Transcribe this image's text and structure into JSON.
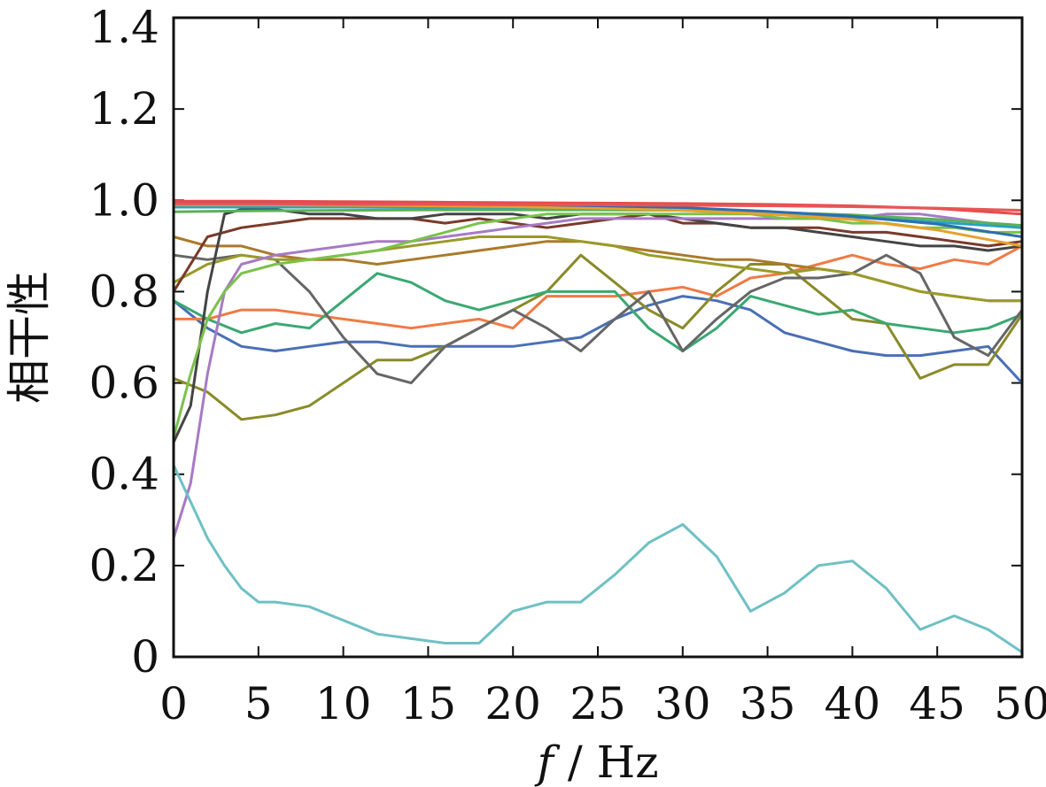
{
  "chart_data": {
    "type": "line",
    "title": "",
    "xlabel_italic": "f",
    "xlabel_rest": " / Hz",
    "ylabel": "相干性",
    "xlim": [
      0,
      50
    ],
    "ylim": [
      0,
      1.4
    ],
    "xticks": [
      0,
      5,
      10,
      15,
      20,
      25,
      30,
      35,
      40,
      45,
      50
    ],
    "xtick_labels": [
      "0",
      "5",
      "10",
      "15",
      "20",
      "25",
      "30",
      "35",
      "40",
      "45",
      "50"
    ],
    "yticks": [
      0,
      0.2,
      0.4,
      0.6,
      0.8,
      1.0,
      1.2,
      1.4
    ],
    "ytick_labels": [
      "0",
      "0.2",
      "0.4",
      "0.6",
      "0.8",
      "1.0",
      "1.2",
      "1.4"
    ],
    "grid": false,
    "legend": "none",
    "series": [
      {
        "color": "#4a6fb5",
        "x": [
          0,
          2,
          4,
          6,
          8,
          10,
          12,
          14,
          16,
          18,
          20,
          22,
          24,
          26,
          28,
          30,
          32,
          34,
          36,
          38,
          40,
          42,
          44,
          46,
          48,
          50
        ],
        "y": [
          0.78,
          0.72,
          0.68,
          0.67,
          0.68,
          0.69,
          0.69,
          0.68,
          0.68,
          0.68,
          0.68,
          0.69,
          0.7,
          0.74,
          0.77,
          0.79,
          0.78,
          0.76,
          0.71,
          0.69,
          0.67,
          0.66,
          0.66,
          0.67,
          0.68,
          0.6
        ]
      },
      {
        "color": "#f07a45",
        "x": [
          0,
          2,
          4,
          6,
          8,
          10,
          12,
          14,
          16,
          18,
          20,
          22,
          24,
          26,
          28,
          30,
          32,
          34,
          36,
          38,
          40,
          42,
          44,
          46,
          48,
          50
        ],
        "y": [
          0.74,
          0.74,
          0.76,
          0.76,
          0.75,
          0.74,
          0.73,
          0.72,
          0.73,
          0.74,
          0.72,
          0.79,
          0.79,
          0.79,
          0.8,
          0.81,
          0.79,
          0.83,
          0.84,
          0.86,
          0.88,
          0.86,
          0.85,
          0.87,
          0.86,
          0.9
        ]
      },
      {
        "color": "#8a8a2a",
        "x": [
          0,
          2,
          4,
          6,
          8,
          10,
          12,
          14,
          16,
          18,
          20,
          22,
          24,
          26,
          28,
          30,
          32,
          34,
          36,
          38,
          40,
          42,
          44,
          46,
          48,
          50
        ],
        "y": [
          0.61,
          0.58,
          0.52,
          0.53,
          0.55,
          0.6,
          0.65,
          0.65,
          0.68,
          0.72,
          0.76,
          0.8,
          0.88,
          0.82,
          0.76,
          0.72,
          0.8,
          0.86,
          0.86,
          0.8,
          0.74,
          0.73,
          0.61,
          0.64,
          0.64,
          0.75
        ]
      },
      {
        "color": "#3aa872",
        "x": [
          0,
          2,
          4,
          6,
          8,
          10,
          12,
          14,
          16,
          18,
          20,
          22,
          24,
          26,
          28,
          30,
          32,
          34,
          36,
          38,
          40,
          42,
          44,
          46,
          48,
          50
        ],
        "y": [
          0.78,
          0.74,
          0.71,
          0.73,
          0.72,
          0.78,
          0.84,
          0.82,
          0.78,
          0.76,
          0.78,
          0.8,
          0.8,
          0.8,
          0.72,
          0.67,
          0.72,
          0.79,
          0.77,
          0.75,
          0.76,
          0.73,
          0.72,
          0.71,
          0.72,
          0.75
        ]
      },
      {
        "color": "#666666",
        "x": [
          0,
          2,
          4,
          6,
          8,
          10,
          12,
          14,
          16,
          18,
          20,
          22,
          24,
          26,
          28,
          30,
          32,
          34,
          36,
          38,
          40,
          42,
          44,
          46,
          48,
          50
        ],
        "y": [
          0.88,
          0.87,
          0.88,
          0.87,
          0.8,
          0.7,
          0.62,
          0.6,
          0.68,
          0.72,
          0.76,
          0.72,
          0.67,
          0.74,
          0.8,
          0.67,
          0.74,
          0.8,
          0.83,
          0.83,
          0.84,
          0.88,
          0.84,
          0.7,
          0.66,
          0.76
        ]
      },
      {
        "color": "#aa7a2a",
        "x": [
          0,
          2,
          4,
          6,
          8,
          10,
          12,
          14,
          16,
          18,
          20,
          22,
          24,
          26,
          28,
          30,
          32,
          34,
          36,
          38,
          40,
          42,
          44,
          46,
          48,
          50
        ],
        "y": [
          0.92,
          0.9,
          0.9,
          0.88,
          0.87,
          0.87,
          0.86,
          0.87,
          0.88,
          0.89,
          0.9,
          0.91,
          0.91,
          0.9,
          0.89,
          0.88,
          0.87,
          0.87,
          0.86,
          0.85,
          0.84,
          0.82,
          0.8,
          0.79,
          0.78,
          0.78
        ]
      },
      {
        "color": "#9a9a2a",
        "x": [
          0,
          2,
          4,
          6,
          8,
          10,
          12,
          14,
          16,
          18,
          20,
          22,
          24,
          26,
          28,
          30,
          32,
          34,
          36,
          38,
          40,
          42,
          44,
          46,
          48,
          50
        ],
        "y": [
          0.82,
          0.86,
          0.88,
          0.87,
          0.87,
          0.88,
          0.89,
          0.9,
          0.91,
          0.92,
          0.92,
          0.92,
          0.91,
          0.9,
          0.88,
          0.87,
          0.86,
          0.85,
          0.84,
          0.85,
          0.84,
          0.82,
          0.8,
          0.79,
          0.78,
          0.78
        ]
      },
      {
        "color": "#7a3a2a",
        "x": [
          0,
          2,
          4,
          6,
          8,
          10,
          12,
          14,
          16,
          18,
          20,
          22,
          24,
          26,
          28,
          30,
          32,
          34,
          36,
          38,
          40,
          42,
          44,
          46,
          48,
          50
        ],
        "y": [
          0.8,
          0.92,
          0.94,
          0.95,
          0.96,
          0.96,
          0.96,
          0.96,
          0.95,
          0.96,
          0.95,
          0.94,
          0.95,
          0.96,
          0.97,
          0.95,
          0.95,
          0.94,
          0.94,
          0.94,
          0.93,
          0.93,
          0.92,
          0.91,
          0.9,
          0.91
        ]
      },
      {
        "color": "#444444",
        "x": [
          0,
          1,
          2,
          3,
          4,
          6,
          8,
          10,
          12,
          14,
          16,
          18,
          20,
          22,
          24,
          26,
          28,
          30,
          32,
          34,
          36,
          38,
          40,
          42,
          44,
          46,
          48,
          50
        ],
        "y": [
          0.47,
          0.55,
          0.8,
          0.97,
          0.98,
          0.98,
          0.97,
          0.97,
          0.96,
          0.96,
          0.97,
          0.97,
          0.97,
          0.96,
          0.97,
          0.97,
          0.97,
          0.96,
          0.95,
          0.94,
          0.94,
          0.93,
          0.92,
          0.91,
          0.9,
          0.9,
          0.89,
          0.9
        ]
      },
      {
        "color": "#a77ac4",
        "x": [
          0,
          1,
          2,
          3,
          4,
          6,
          8,
          10,
          12,
          14,
          16,
          18,
          20,
          22,
          24,
          26,
          28,
          30,
          32,
          34,
          36,
          38,
          40,
          42,
          44,
          46,
          48,
          50
        ],
        "y": [
          0.26,
          0.38,
          0.62,
          0.8,
          0.86,
          0.88,
          0.89,
          0.9,
          0.91,
          0.91,
          0.92,
          0.93,
          0.94,
          0.95,
          0.96,
          0.96,
          0.96,
          0.96,
          0.96,
          0.96,
          0.96,
          0.96,
          0.96,
          0.97,
          0.97,
          0.96,
          0.95,
          0.94
        ]
      },
      {
        "color": "#7ac24a",
        "x": [
          0,
          1,
          2,
          3,
          4,
          6,
          8,
          10,
          12,
          14,
          16,
          18,
          20,
          22,
          24,
          26,
          28,
          30,
          32,
          34,
          36,
          38,
          40,
          42,
          44,
          46,
          48,
          50
        ],
        "y": [
          0.48,
          0.62,
          0.74,
          0.8,
          0.84,
          0.86,
          0.87,
          0.88,
          0.89,
          0.91,
          0.93,
          0.95,
          0.96,
          0.97,
          0.97,
          0.97,
          0.97,
          0.97,
          0.97,
          0.97,
          0.96,
          0.96,
          0.95,
          0.95,
          0.94,
          0.94,
          0.93,
          0.93
        ]
      },
      {
        "color": "#2aa0c0",
        "x": [
          0,
          5,
          10,
          15,
          20,
          25,
          30,
          35,
          40,
          45,
          50
        ],
        "y": [
          0.985,
          0.985,
          0.985,
          0.984,
          0.983,
          0.982,
          0.978,
          0.972,
          0.963,
          0.952,
          0.94
        ]
      },
      {
        "color": "#5ab05a",
        "x": [
          0,
          5,
          10,
          15,
          20,
          25,
          30,
          35,
          40,
          45,
          50
        ],
        "y": [
          0.975,
          0.977,
          0.978,
          0.979,
          0.979,
          0.979,
          0.978,
          0.974,
          0.968,
          0.958,
          0.945
        ]
      },
      {
        "color": "#e6a030",
        "x": [
          0,
          5,
          10,
          15,
          20,
          25,
          30,
          35,
          40,
          45,
          50
        ],
        "y": [
          0.99,
          0.99,
          0.989,
          0.988,
          0.986,
          0.983,
          0.978,
          0.97,
          0.958,
          0.935,
          0.9
        ]
      },
      {
        "color": "#2f6db0",
        "x": [
          0,
          5,
          10,
          15,
          20,
          25,
          30,
          35,
          40,
          45,
          50
        ],
        "y": [
          0.995,
          0.995,
          0.994,
          0.993,
          0.991,
          0.988,
          0.984,
          0.976,
          0.965,
          0.948,
          0.92
        ]
      },
      {
        "color": "#e84a4a",
        "x": [
          0,
          5,
          10,
          15,
          20,
          25,
          30,
          35,
          40,
          45,
          50
        ],
        "y": [
          0.998,
          0.998,
          0.997,
          0.996,
          0.995,
          0.994,
          0.993,
          0.991,
          0.988,
          0.982,
          0.97
        ]
      },
      {
        "color": "#e85555",
        "x": [
          0,
          5,
          10,
          15,
          20,
          25,
          30,
          35,
          40,
          45,
          50
        ],
        "y": [
          0.992,
          0.992,
          0.991,
          0.991,
          0.99,
          0.99,
          0.989,
          0.988,
          0.986,
          0.983,
          0.978
        ]
      },
      {
        "color": "#6fc0c4",
        "x": [
          0,
          1,
          2,
          3,
          4,
          5,
          6,
          8,
          10,
          12,
          14,
          16,
          18,
          20,
          22,
          24,
          26,
          28,
          30,
          32,
          34,
          36,
          38,
          40,
          42,
          44,
          46,
          48,
          50
        ],
        "y": [
          0.42,
          0.34,
          0.26,
          0.2,
          0.15,
          0.12,
          0.12,
          0.11,
          0.08,
          0.05,
          0.04,
          0.03,
          0.03,
          0.1,
          0.12,
          0.12,
          0.18,
          0.25,
          0.29,
          0.22,
          0.1,
          0.14,
          0.2,
          0.21,
          0.15,
          0.06,
          0.09,
          0.06,
          0.01
        ]
      }
    ]
  }
}
